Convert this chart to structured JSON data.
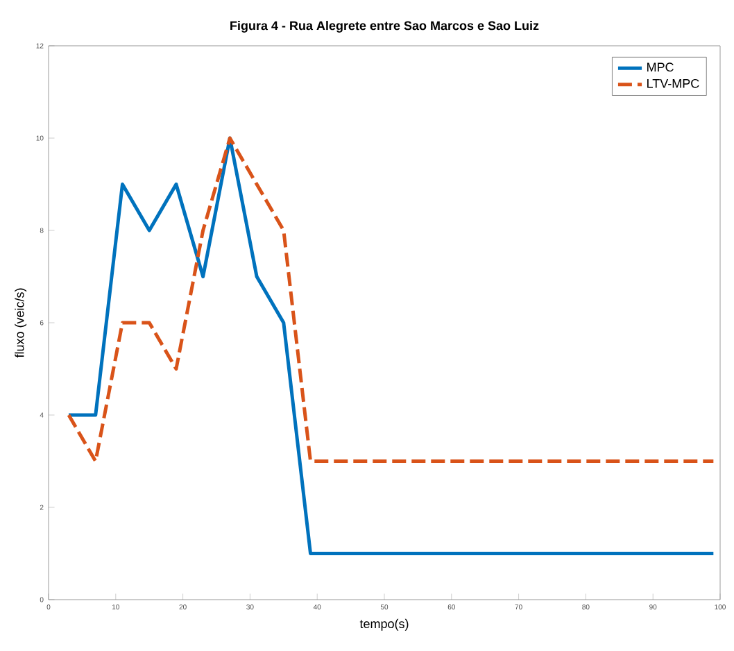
{
  "chart_data": {
    "type": "line",
    "title": "Figura 4 - Rua Alegrete entre Sao Marcos e Sao Luiz",
    "xlabel": "tempo(s)",
    "ylabel": "fluxo (veic/s)",
    "x": [
      3,
      7,
      11,
      15,
      19,
      23,
      27,
      31,
      35,
      39,
      99
    ],
    "series": [
      {
        "name": "MPC",
        "color": "#0072bd",
        "line_style": "solid",
        "values": [
          4,
          4,
          9,
          8,
          9,
          7,
          10,
          7,
          6,
          1,
          1
        ]
      },
      {
        "name": "LTV-MPC",
        "color": "#d95319",
        "line_style": "dashed",
        "values": [
          4,
          3,
          6,
          6,
          5,
          8,
          10,
          9,
          8,
          3,
          3
        ]
      }
    ],
    "xlim": [
      0,
      100
    ],
    "xticks": [
      0,
      10,
      20,
      30,
      40,
      50,
      60,
      70,
      80,
      90,
      100
    ],
    "ylim": [
      0,
      12
    ],
    "yticks": [
      0,
      2,
      4,
      6,
      8,
      10,
      12
    ],
    "grid": false,
    "legend": "top right",
    "marker": "none"
  }
}
